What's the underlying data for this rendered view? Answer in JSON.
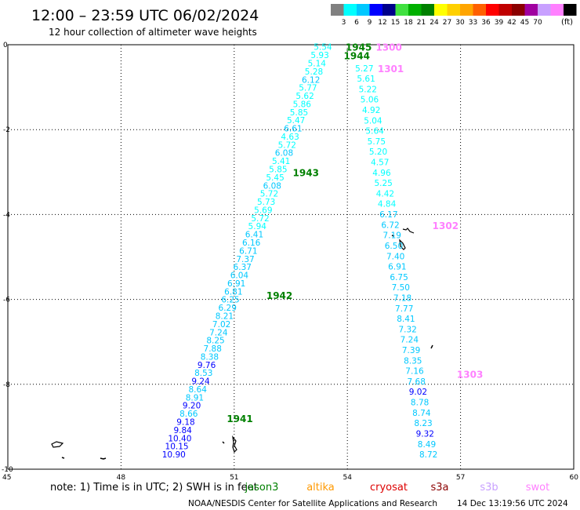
{
  "title": "12:00 – 23:59 UTC 06/02/2024",
  "subtitle": "12 hour collection of altimeter wave heights",
  "colorbar": {
    "unit_label": "(ft)",
    "ticks": [
      "3",
      "6",
      "9",
      "12",
      "15",
      "18",
      "21",
      "24",
      "27",
      "30",
      "33",
      "36",
      "39",
      "42",
      "45",
      "70"
    ],
    "colors": [
      "#808080",
      "#00ffff",
      "#00c8ff",
      "#0000ff",
      "#00008b",
      "#40e040",
      "#00b000",
      "#008000",
      "#ffff00",
      "#ffd000",
      "#ffa500",
      "#ff6000",
      "#ff0000",
      "#c00000",
      "#8b0000",
      "#a000a0",
      "#c8a0ff",
      "#ff80ff",
      "#000000"
    ]
  },
  "note": {
    "text": "note:  1) Time is in UTC; 2) SWH is in feet",
    "satellites": [
      {
        "name": "jason3",
        "color": "#008000"
      },
      {
        "name": "altika",
        "color": "#ff9900"
      },
      {
        "name": "cryosat",
        "color": "#dd0000"
      },
      {
        "name": "s3a",
        "color": "#8b0000"
      },
      {
        "name": "s3b",
        "color": "#c8a0ff"
      },
      {
        "name": "swot",
        "color": "#ff80ff"
      }
    ]
  },
  "footer": {
    "credit": "NOAA/NESDIS Center for Satellite Applications and Research",
    "timestamp": "14 Dec 13:19:56 UTC 2024"
  },
  "chart_data": {
    "type": "scatter",
    "xlim": [
      45,
      60
    ],
    "ylim": [
      -10,
      0
    ],
    "xticks": [
      "45",
      "48",
      "51",
      "54",
      "57",
      "60"
    ],
    "yticks": [
      "0",
      "-2",
      "-4",
      "-6",
      "-8",
      "-10"
    ],
    "grid": true,
    "color_scale_ft": [
      {
        "max": 6,
        "color": "#00ffff"
      },
      {
        "max": 9,
        "color": "#00c8ff"
      },
      {
        "max": 12,
        "color": "#0000ff"
      },
      {
        "max": 99,
        "color": "#00008b"
      }
    ],
    "tracks": [
      {
        "satellite": "jason3",
        "start": [
          53.35,
          -0.05
        ],
        "end": [
          49.4,
          -9.65
        ],
        "values": [
          "5.54",
          "5.93",
          "5.14",
          "5.28",
          "6.12",
          "5.77",
          "5.62",
          "5.86",
          "5.85",
          "5.47",
          "6.61",
          "4.63",
          "5.72",
          "6.08",
          "5.41",
          "5.85",
          "5.45",
          "6.08",
          "5.72",
          "5.73",
          "5.69",
          "5.72",
          "5.94",
          "6.41",
          "6.16",
          "6.71",
          "7.37",
          "6.37",
          "6.04",
          "6.91",
          "6.81",
          "6.25",
          "6.29",
          "8.21",
          "7.02",
          "7.24",
          "8.25",
          "7.88",
          "8.38",
          "9.76",
          "8.53",
          "9.24",
          "8.64",
          "8.91",
          "9.20",
          "8.66",
          "9.18",
          "9.84",
          "10.40",
          "10.15",
          "10.90"
        ]
      },
      {
        "satellite": "swot",
        "start": [
          54.45,
          -0.55
        ],
        "end": [
          56.15,
          -9.65
        ],
        "values": [
          "5.27",
          "5.61",
          "5.22",
          "5.06",
          "4.92",
          "5.04",
          "5.64",
          "5.75",
          "5.20",
          "4.57",
          "4.96",
          "5.25",
          "4.42",
          "4.84",
          "6.17",
          "6.72",
          "7.19",
          "6.50",
          "7.40",
          "6.91",
          "6.75",
          "7.50",
          "7.18",
          "7.77",
          "8.41",
          "7.32",
          "7.24",
          "7.39",
          "8.35",
          "7.16",
          "7.68",
          "9.02",
          "8.78",
          "8.74",
          "8.23",
          "9.32",
          "8.49",
          "8.72"
        ]
      }
    ],
    "annotations": [
      {
        "text": "1945",
        "x": 54.3,
        "y": -0.05,
        "color": "#008000"
      },
      {
        "text": "1944",
        "x": 54.25,
        "y": -0.25,
        "color": "#008000"
      },
      {
        "text": "1943",
        "x": 52.9,
        "y": -3.0,
        "color": "#008000"
      },
      {
        "text": "1942",
        "x": 52.2,
        "y": -5.9,
        "color": "#008000"
      },
      {
        "text": "1941",
        "x": 51.15,
        "y": -8.8,
        "color": "#008000"
      },
      {
        "text": "1300",
        "x": 55.1,
        "y": -0.05,
        "color": "#ff80ff"
      },
      {
        "text": "1301",
        "x": 55.15,
        "y": -0.55,
        "color": "#ff80ff"
      },
      {
        "text": "1302",
        "x": 56.6,
        "y": -4.25,
        "color": "#ff80ff"
      },
      {
        "text": "1303",
        "x": 57.25,
        "y": -7.75,
        "color": "#ff80ff"
      }
    ]
  }
}
